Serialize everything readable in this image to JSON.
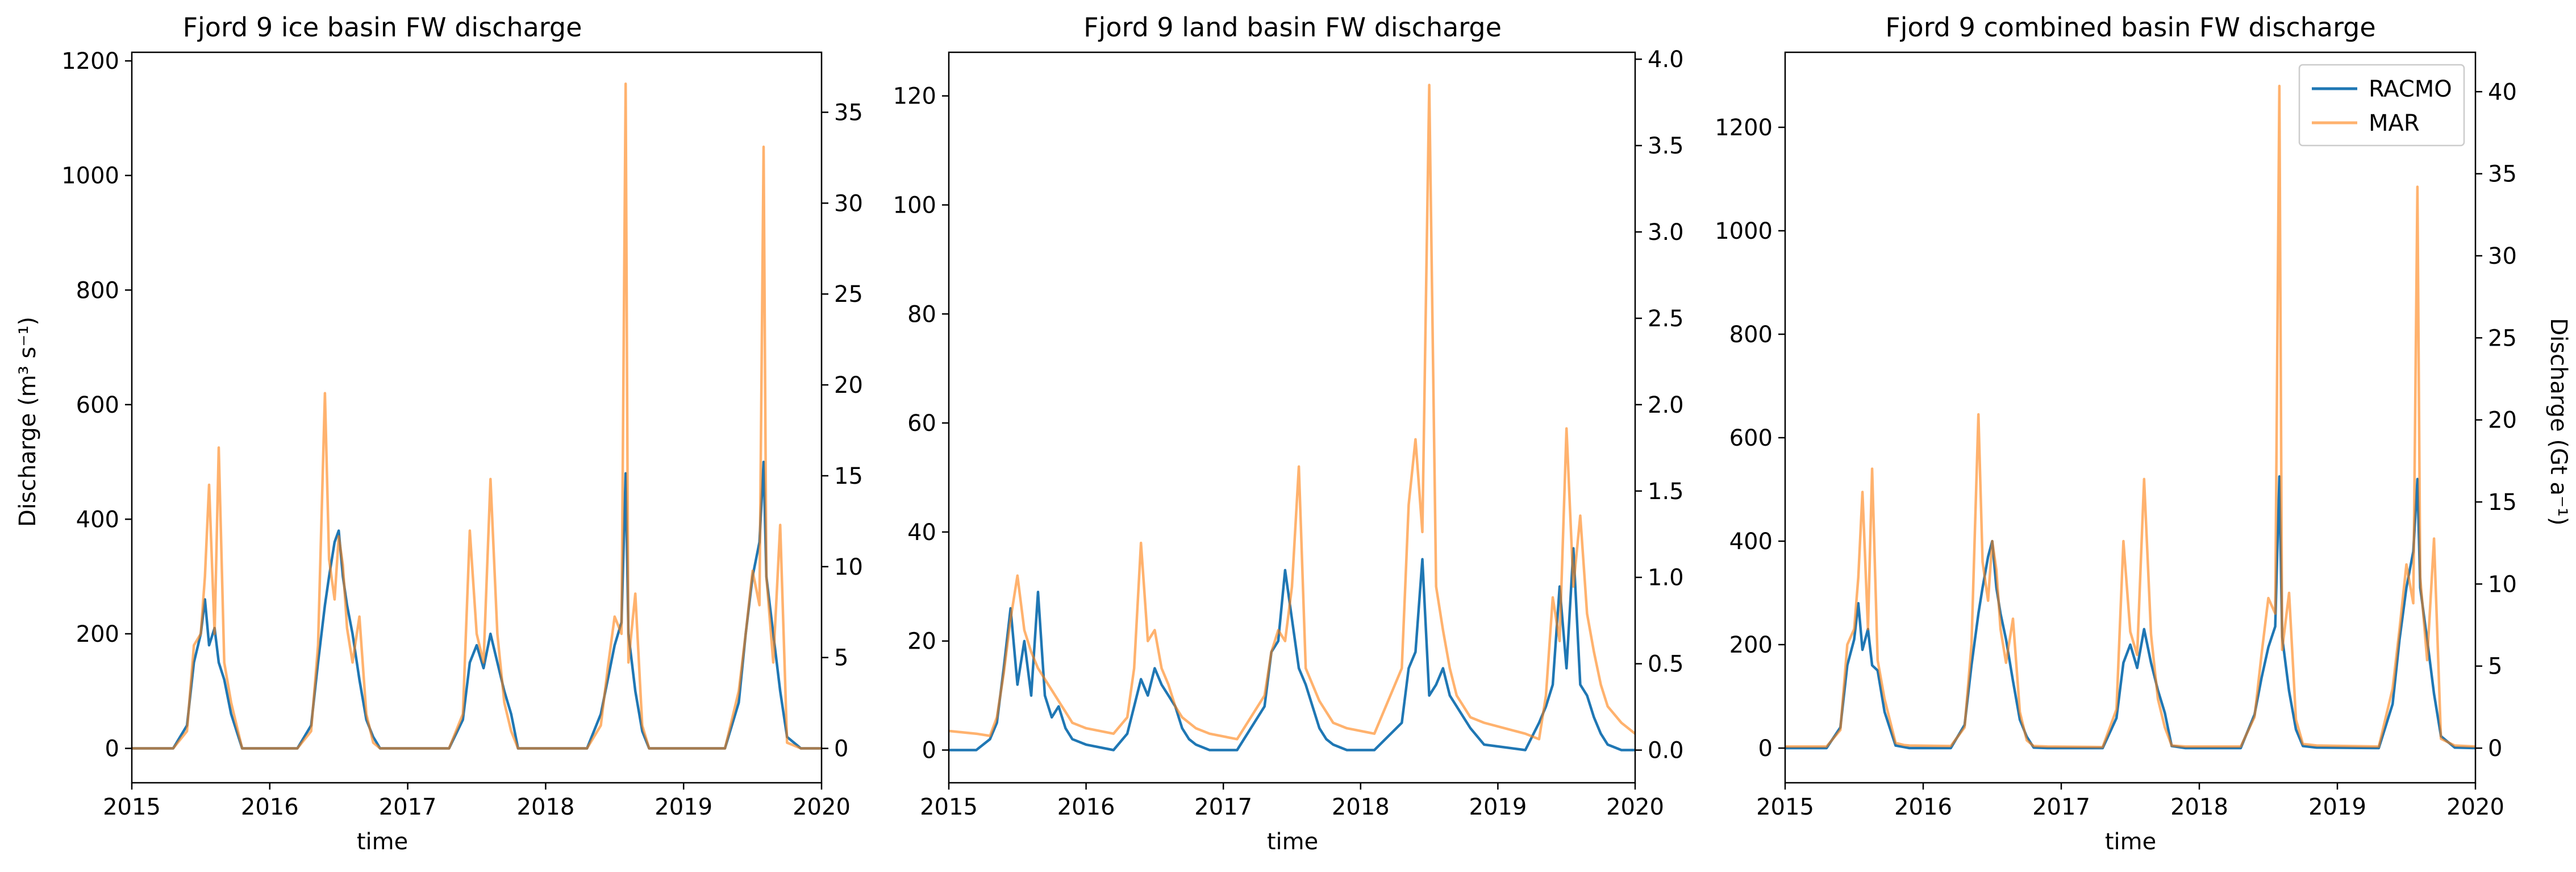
{
  "figure": {
    "legend": [
      {
        "label": "RACMO",
        "color": "#1f77b4"
      },
      {
        "label": "MAR",
        "color": "#ff7f0e"
      }
    ]
  },
  "chart_data": [
    {
      "type": "line",
      "title": "Fjord 9 ice basin FW discharge",
      "xlabel": "time",
      "ylabel": "Discharge (m³ s⁻¹)",
      "ylabel_right": "",
      "xlim": [
        2015,
        2020
      ],
      "ylim": [
        -60,
        1215
      ],
      "yticks": [
        0,
        200,
        400,
        600,
        800,
        1000,
        1200
      ],
      "ylim_right": [
        -1.89,
        38.3
      ],
      "yticks_right": [
        0,
        5,
        10,
        15,
        20,
        25,
        30,
        35
      ],
      "xticks": [
        "2015",
        "2016",
        "2017",
        "2018",
        "2019",
        "2020"
      ],
      "legend": false,
      "series": [
        {
          "name": "RACMO",
          "color": "#1f77b4",
          "opacity": 1.0,
          "linewidth": 4.5,
          "x": [
            2015.0,
            2015.3,
            2015.4,
            2015.45,
            2015.5,
            2015.53,
            2015.56,
            2015.6,
            2015.63,
            2015.67,
            2015.72,
            2015.8,
            2015.86,
            2015.9,
            2016.2,
            2016.3,
            2016.35,
            2016.4,
            2016.43,
            2016.47,
            2016.5,
            2016.53,
            2016.56,
            2016.6,
            2016.65,
            2016.7,
            2016.75,
            2016.8,
            2016.9,
            2017.3,
            2017.4,
            2017.45,
            2017.5,
            2017.55,
            2017.6,
            2017.65,
            2017.7,
            2017.75,
            2017.8,
            2017.9,
            2018.3,
            2018.4,
            2018.45,
            2018.5,
            2018.55,
            2018.58,
            2018.6,
            2018.65,
            2018.7,
            2018.75,
            2018.85,
            2019.3,
            2019.4,
            2019.45,
            2019.5,
            2019.55,
            2019.58,
            2019.6,
            2019.65,
            2019.7,
            2019.75,
            2019.85,
            2020.0
          ],
          "y": [
            0,
            0,
            40,
            150,
            200,
            260,
            180,
            210,
            150,
            120,
            60,
            0,
            0,
            0,
            0,
            40,
            150,
            250,
            300,
            360,
            380,
            300,
            250,
            200,
            120,
            50,
            20,
            0,
            0,
            0,
            50,
            150,
            180,
            140,
            200,
            150,
            100,
            60,
            0,
            0,
            0,
            60,
            120,
            180,
            220,
            480,
            200,
            100,
            30,
            0,
            0,
            0,
            80,
            200,
            300,
            360,
            500,
            300,
            200,
            100,
            20,
            0,
            0
          ]
        },
        {
          "name": "MAR",
          "color": "#ff7f0e",
          "opacity": 0.6,
          "linewidth": 4.5,
          "x": [
            2015.0,
            2015.3,
            2015.4,
            2015.45,
            2015.5,
            2015.53,
            2015.56,
            2015.6,
            2015.63,
            2015.67,
            2015.72,
            2015.8,
            2015.86,
            2015.9,
            2016.2,
            2016.3,
            2016.35,
            2016.4,
            2016.43,
            2016.47,
            2016.5,
            2016.53,
            2016.56,
            2016.6,
            2016.65,
            2016.7,
            2016.75,
            2016.8,
            2016.9,
            2017.3,
            2017.4,
            2017.45,
            2017.5,
            2017.55,
            2017.6,
            2017.65,
            2017.7,
            2017.75,
            2017.8,
            2017.9,
            2018.3,
            2018.4,
            2018.45,
            2018.5,
            2018.55,
            2018.58,
            2018.6,
            2018.65,
            2018.7,
            2018.75,
            2018.85,
            2019.3,
            2019.4,
            2019.45,
            2019.5,
            2019.55,
            2019.58,
            2019.6,
            2019.65,
            2019.7,
            2019.75,
            2019.85,
            2020.0
          ],
          "y": [
            0,
            0,
            30,
            180,
            200,
            300,
            460,
            200,
            525,
            150,
            80,
            0,
            0,
            0,
            0,
            30,
            180,
            620,
            330,
            260,
            370,
            320,
            210,
            150,
            230,
            60,
            10,
            0,
            0,
            0,
            60,
            380,
            200,
            150,
            470,
            200,
            80,
            30,
            0,
            0,
            0,
            40,
            140,
            230,
            200,
            1160,
            150,
            270,
            40,
            0,
            0,
            0,
            100,
            200,
            310,
            250,
            1050,
            300,
            150,
            390,
            10,
            0,
            0
          ]
        }
      ]
    },
    {
      "type": "line",
      "title": "Fjord 9 land basin FW discharge",
      "xlabel": "time",
      "ylabel": "",
      "ylabel_right": "",
      "xlim": [
        2015,
        2020
      ],
      "ylim": [
        -6,
        128
      ],
      "yticks": [
        0,
        20,
        40,
        60,
        80,
        100,
        120
      ],
      "ylim_right": [
        -0.189,
        4.04
      ],
      "yticks_right": [
        0.0,
        0.5,
        1.0,
        1.5,
        2.0,
        2.5,
        3.0,
        3.5,
        4.0
      ],
      "xticks": [
        "2015",
        "2016",
        "2017",
        "2018",
        "2019",
        "2020"
      ],
      "legend": false,
      "series": [
        {
          "name": "RACMO",
          "color": "#1f77b4",
          "opacity": 1.0,
          "linewidth": 4.5,
          "x": [
            2015.0,
            2015.2,
            2015.3,
            2015.35,
            2015.4,
            2015.45,
            2015.5,
            2015.55,
            2015.6,
            2015.65,
            2015.7,
            2015.75,
            2015.8,
            2015.85,
            2015.9,
            2016.0,
            2016.2,
            2016.3,
            2016.35,
            2016.4,
            2016.45,
            2016.5,
            2016.55,
            2016.6,
            2016.65,
            2016.7,
            2016.75,
            2016.8,
            2016.9,
            2017.1,
            2017.3,
            2017.35,
            2017.4,
            2017.45,
            2017.5,
            2017.55,
            2017.6,
            2017.65,
            2017.7,
            2017.75,
            2017.8,
            2017.9,
            2018.1,
            2018.3,
            2018.35,
            2018.4,
            2018.45,
            2018.5,
            2018.55,
            2018.6,
            2018.65,
            2018.7,
            2018.75,
            2018.8,
            2018.9,
            2019.2,
            2019.3,
            2019.35,
            2019.4,
            2019.45,
            2019.5,
            2019.55,
            2019.6,
            2019.65,
            2019.7,
            2019.75,
            2019.8,
            2019.9,
            2020.0
          ],
          "y": [
            0,
            0,
            2,
            5,
            15,
            26,
            12,
            20,
            10,
            29,
            10,
            6,
            8,
            4,
            2,
            1,
            0,
            3,
            8,
            13,
            10,
            15,
            12,
            10,
            8,
            4,
            2,
            1,
            0,
            0,
            8,
            18,
            20,
            33,
            24,
            15,
            12,
            8,
            4,
            2,
            1,
            0,
            0,
            5,
            15,
            18,
            35,
            10,
            12,
            15,
            10,
            8,
            6,
            4,
            1,
            0,
            5,
            8,
            12,
            30,
            15,
            37,
            12,
            10,
            6,
            3,
            1,
            0,
            0
          ]
        },
        {
          "name": "MAR",
          "color": "#ff7f0e",
          "opacity": 0.6,
          "linewidth": 4.5,
          "x": [
            2015.0,
            2015.2,
            2015.3,
            2015.35,
            2015.4,
            2015.45,
            2015.5,
            2015.55,
            2015.6,
            2015.65,
            2015.7,
            2015.75,
            2015.8,
            2015.85,
            2015.9,
            2016.0,
            2016.2,
            2016.3,
            2016.35,
            2016.4,
            2016.45,
            2016.5,
            2016.55,
            2016.6,
            2016.65,
            2016.7,
            2016.75,
            2016.8,
            2016.9,
            2017.1,
            2017.3,
            2017.35,
            2017.4,
            2017.45,
            2017.5,
            2017.55,
            2017.6,
            2017.65,
            2017.7,
            2017.75,
            2017.8,
            2017.9,
            2018.1,
            2018.3,
            2018.35,
            2018.4,
            2018.45,
            2018.5,
            2018.55,
            2018.6,
            2018.65,
            2018.7,
            2018.75,
            2018.8,
            2018.9,
            2019.2,
            2019.3,
            2019.35,
            2019.4,
            2019.45,
            2019.5,
            2019.55,
            2019.6,
            2019.65,
            2019.7,
            2019.75,
            2019.8,
            2019.9,
            2020.0
          ],
          "y": [
            3.5,
            3.0,
            2.6,
            6,
            14,
            24,
            32,
            22,
            18,
            15,
            13,
            11,
            9,
            7,
            5,
            4,
            3,
            6,
            15,
            38,
            20,
            22,
            15,
            12,
            8,
            6,
            5,
            4,
            3,
            2,
            10,
            18,
            22,
            20,
            30,
            52,
            15,
            12,
            9,
            7,
            5,
            4,
            3,
            15,
            45,
            57,
            40,
            122,
            30,
            22,
            15,
            10,
            8,
            6,
            5,
            3,
            2,
            10,
            28,
            20,
            59,
            30,
            43,
            25,
            18,
            12,
            8,
            5,
            3
          ]
        }
      ]
    },
    {
      "type": "line",
      "title": "Fjord 9 combined basin FW discharge",
      "xlabel": "time",
      "ylabel": "",
      "ylabel_right": "Discharge (Gt a⁻¹)",
      "xlim": [
        2015,
        2020
      ],
      "ylim": [
        -67,
        1345
      ],
      "yticks": [
        0,
        200,
        400,
        600,
        800,
        1000,
        1200
      ],
      "ylim_right": [
        -2.11,
        42.4
      ],
      "yticks_right": [
        0,
        5,
        10,
        15,
        20,
        25,
        30,
        35,
        40
      ],
      "xticks": [
        "2015",
        "2016",
        "2017",
        "2018",
        "2019",
        "2020"
      ],
      "legend": true,
      "legend_position": "top-right",
      "series": [
        {
          "name": "RACMO",
          "color": "#1f77b4",
          "opacity": 1.0,
          "linewidth": 4.5,
          "x": [
            2015.0,
            2015.3,
            2015.4,
            2015.45,
            2015.5,
            2015.53,
            2015.56,
            2015.6,
            2015.63,
            2015.67,
            2015.72,
            2015.8,
            2015.86,
            2015.9,
            2016.2,
            2016.3,
            2016.35,
            2016.4,
            2016.43,
            2016.47,
            2016.5,
            2016.53,
            2016.56,
            2016.6,
            2016.65,
            2016.7,
            2016.75,
            2016.8,
            2016.9,
            2017.3,
            2017.4,
            2017.45,
            2017.5,
            2017.55,
            2017.6,
            2017.65,
            2017.7,
            2017.75,
            2017.8,
            2017.9,
            2018.3,
            2018.4,
            2018.45,
            2018.5,
            2018.55,
            2018.58,
            2018.6,
            2018.65,
            2018.7,
            2018.75,
            2018.85,
            2019.3,
            2019.4,
            2019.45,
            2019.5,
            2019.55,
            2019.58,
            2019.6,
            2019.65,
            2019.7,
            2019.75,
            2019.85,
            2020.0
          ],
          "y": [
            0,
            0,
            40,
            160,
            210,
            280,
            190,
            230,
            160,
            150,
            70,
            5,
            2,
            0,
            0,
            45,
            160,
            260,
            310,
            370,
            400,
            310,
            260,
            210,
            130,
            55,
            22,
            1,
            0,
            0,
            58,
            165,
            200,
            155,
            230,
            165,
            112,
            68,
            4,
            0,
            0,
            65,
            135,
            195,
            235,
            525,
            215,
            110,
            36,
            4,
            1,
            0,
            85,
            210,
            310,
            380,
            520,
            310,
            210,
            105,
            23,
            1,
            0
          ]
        },
        {
          "name": "MAR",
          "color": "#ff7f0e",
          "opacity": 0.6,
          "linewidth": 4.5,
          "x": [
            2015.0,
            2015.3,
            2015.4,
            2015.45,
            2015.5,
            2015.53,
            2015.56,
            2015.6,
            2015.63,
            2015.67,
            2015.72,
            2015.8,
            2015.86,
            2015.9,
            2016.2,
            2016.3,
            2016.35,
            2016.4,
            2016.43,
            2016.47,
            2016.5,
            2016.53,
            2016.56,
            2016.6,
            2016.65,
            2016.7,
            2016.75,
            2016.8,
            2016.9,
            2017.3,
            2017.4,
            2017.45,
            2017.5,
            2017.55,
            2017.6,
            2017.65,
            2017.7,
            2017.75,
            2017.8,
            2017.9,
            2018.3,
            2018.4,
            2018.45,
            2018.5,
            2018.55,
            2018.58,
            2018.6,
            2018.65,
            2018.7,
            2018.75,
            2018.85,
            2019.3,
            2019.4,
            2019.45,
            2019.5,
            2019.55,
            2019.58,
            2019.6,
            2019.65,
            2019.7,
            2019.75,
            2019.85,
            2020.0
          ],
          "y": [
            3,
            3,
            35,
            200,
            230,
            330,
            495,
            230,
            540,
            170,
            95,
            10,
            6,
            5,
            4,
            40,
            200,
            645,
            360,
            285,
            400,
            345,
            230,
            165,
            250,
            70,
            15,
            4,
            3,
            2,
            75,
            400,
            225,
            180,
            520,
            220,
            95,
            40,
            5,
            3,
            3,
            60,
            180,
            290,
            260,
            1280,
            190,
            300,
            55,
            8,
            5,
            3,
            115,
            230,
            355,
            280,
            1085,
            330,
            170,
            405,
            18,
            5,
            3
          ]
        }
      ]
    }
  ]
}
